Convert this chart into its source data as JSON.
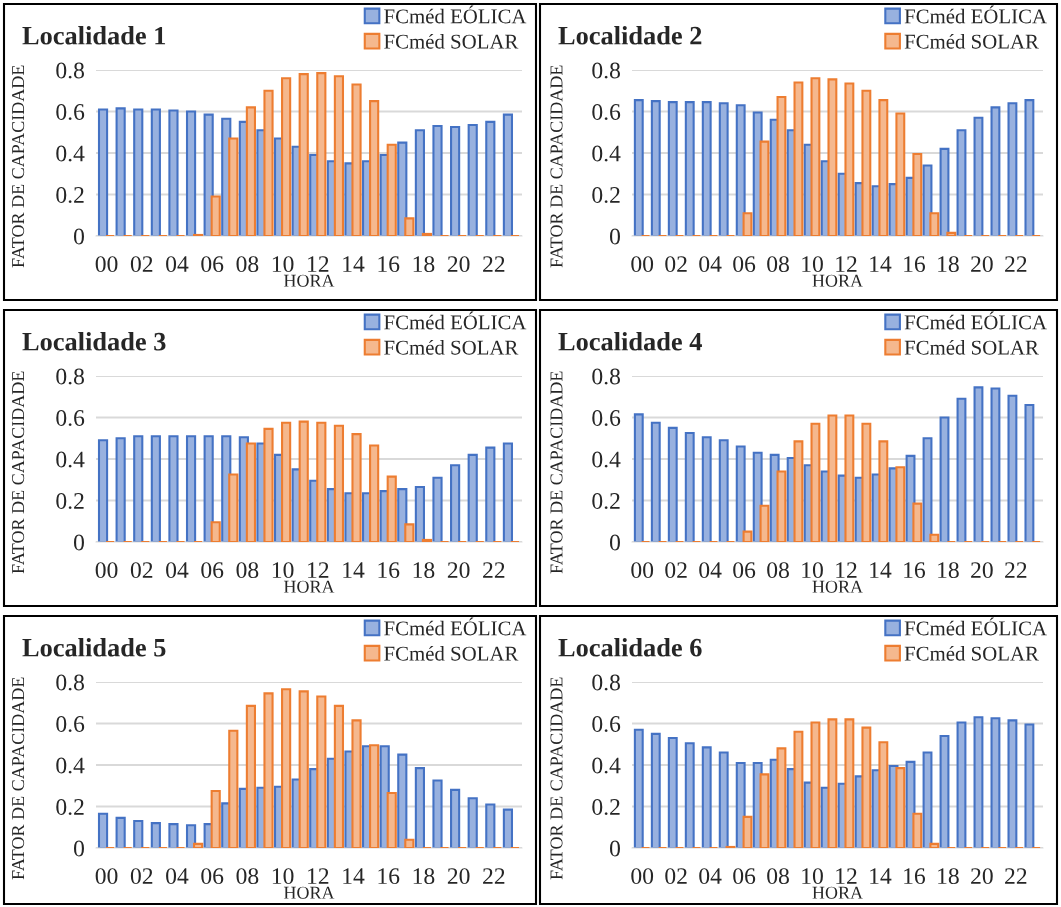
{
  "chart_data": [
    {
      "type": "bar",
      "title": "Localidade 1",
      "xlabel": "HORA",
      "ylabel": "FATOR DE CAPACIDADE",
      "categories": [
        "00",
        null,
        "02",
        null,
        "04",
        null,
        "06",
        null,
        "08",
        null,
        "10",
        null,
        "12",
        null,
        "14",
        null,
        "16",
        null,
        "18",
        null,
        "20",
        null,
        "22",
        null
      ],
      "ylim": [
        0,
        0.8
      ],
      "yticks": [
        0,
        0.2,
        0.4,
        0.6,
        0.8
      ],
      "grid": "y",
      "legend": "top right",
      "series": [
        {
          "name": "FCméd EÓLICA",
          "color": "#4472c4",
          "values": [
            0.61,
            0.615,
            0.61,
            0.61,
            0.605,
            0.6,
            0.585,
            0.565,
            0.55,
            0.51,
            0.47,
            0.43,
            0.39,
            0.36,
            0.35,
            0.36,
            0.39,
            0.45,
            0.51,
            0.53,
            0.525,
            0.535,
            0.55,
            0.585
          ]
        },
        {
          "name": "FCméd SOLAR",
          "color": "#ed7d31",
          "values": [
            0,
            0,
            0,
            0,
            0,
            0.005,
            0.19,
            0.47,
            0.62,
            0.7,
            0.76,
            0.78,
            0.785,
            0.77,
            0.73,
            0.65,
            0.44,
            0.085,
            0.01,
            0,
            0,
            0,
            0,
            0
          ]
        }
      ]
    },
    {
      "type": "bar",
      "title": "Localidade 2",
      "xlabel": "HORA",
      "ylabel": "FATOR DE CAPACIDADE",
      "categories": [
        "00",
        null,
        "02",
        null,
        "04",
        null,
        "06",
        null,
        "08",
        null,
        "10",
        null,
        "12",
        null,
        "14",
        null,
        "16",
        null,
        "18",
        null,
        "20",
        null,
        "22",
        null
      ],
      "ylim": [
        0,
        0.8
      ],
      "yticks": [
        0,
        0.2,
        0.4,
        0.6,
        0.8
      ],
      "grid": "y",
      "legend": "top right",
      "series": [
        {
          "name": "FCméd EÓLICA",
          "color": "#4472c4",
          "values": [
            0.655,
            0.65,
            0.645,
            0.645,
            0.645,
            0.64,
            0.63,
            0.595,
            0.56,
            0.51,
            0.44,
            0.36,
            0.3,
            0.255,
            0.24,
            0.25,
            0.28,
            0.34,
            0.42,
            0.51,
            0.57,
            0.62,
            0.64,
            0.655
          ]
        },
        {
          "name": "FCméd SOLAR",
          "color": "#ed7d31",
          "values": [
            0,
            0,
            0,
            0,
            0,
            0,
            0.11,
            0.455,
            0.67,
            0.74,
            0.76,
            0.755,
            0.735,
            0.7,
            0.655,
            0.59,
            0.395,
            0.11,
            0.015,
            0,
            0,
            0,
            0,
            0
          ]
        }
      ]
    },
    {
      "type": "bar",
      "title": "Localidade 3",
      "xlabel": "HORA",
      "ylabel": "FATOR DE CAPACIDADE",
      "categories": [
        "00",
        null,
        "02",
        null,
        "04",
        null,
        "06",
        null,
        "08",
        null,
        "10",
        null,
        "12",
        null,
        "14",
        null,
        "16",
        null,
        "18",
        null,
        "20",
        null,
        "22",
        null
      ],
      "ylim": [
        0,
        0.8
      ],
      "yticks": [
        0,
        0.2,
        0.4,
        0.6,
        0.8
      ],
      "grid": "y",
      "legend": "top right",
      "series": [
        {
          "name": "FCméd EÓLICA",
          "color": "#4472c4",
          "values": [
            0.49,
            0.5,
            0.51,
            0.51,
            0.51,
            0.51,
            0.51,
            0.51,
            0.505,
            0.475,
            0.42,
            0.35,
            0.295,
            0.255,
            0.235,
            0.235,
            0.245,
            0.255,
            0.265,
            0.31,
            0.37,
            0.42,
            0.455,
            0.475
          ]
        },
        {
          "name": "FCméd SOLAR",
          "color": "#ed7d31",
          "values": [
            0,
            0,
            0,
            0,
            0,
            0,
            0.095,
            0.325,
            0.475,
            0.545,
            0.575,
            0.58,
            0.575,
            0.56,
            0.52,
            0.465,
            0.315,
            0.085,
            0.01,
            0,
            0,
            0,
            0,
            0
          ]
        }
      ]
    },
    {
      "type": "bar",
      "title": "Localidade 4",
      "xlabel": "HORA",
      "ylabel": "FATOR DE CAPACIDADE",
      "categories": [
        "00",
        null,
        "02",
        null,
        "04",
        null,
        "06",
        null,
        "08",
        null,
        "10",
        null,
        "12",
        null,
        "14",
        null,
        "16",
        null,
        "18",
        null,
        "20",
        null,
        "22",
        null
      ],
      "ylim": [
        0,
        0.8
      ],
      "yticks": [
        0,
        0.2,
        0.4,
        0.6,
        0.8
      ],
      "grid": "y",
      "legend": "top right",
      "series": [
        {
          "name": "FCméd EÓLICA",
          "color": "#4472c4",
          "values": [
            0.615,
            0.575,
            0.55,
            0.525,
            0.505,
            0.49,
            0.46,
            0.43,
            0.42,
            0.405,
            0.37,
            0.34,
            0.32,
            0.31,
            0.325,
            0.355,
            0.415,
            0.5,
            0.6,
            0.69,
            0.745,
            0.74,
            0.705,
            0.66
          ]
        },
        {
          "name": "FCméd SOLAR",
          "color": "#ed7d31",
          "values": [
            0,
            0,
            0,
            0,
            0,
            0,
            0.05,
            0.175,
            0.34,
            0.485,
            0.57,
            0.61,
            0.61,
            0.57,
            0.485,
            0.36,
            0.185,
            0.035,
            0,
            0,
            0,
            0,
            0,
            0
          ]
        }
      ]
    },
    {
      "type": "bar",
      "title": "Localidade 5",
      "xlabel": "HORA",
      "ylabel": "FATOR DE CAPACIDADE",
      "categories": [
        "00",
        null,
        "02",
        null,
        "04",
        null,
        "06",
        null,
        "08",
        null,
        "10",
        null,
        "12",
        null,
        "14",
        null,
        "16",
        null,
        "18",
        null,
        "20",
        null,
        "22",
        null
      ],
      "ylim": [
        0,
        0.8
      ],
      "yticks": [
        0,
        0.2,
        0.4,
        0.6,
        0.8
      ],
      "grid": "y",
      "legend": "top right",
      "series": [
        {
          "name": "FCméd EÓLICA",
          "color": "#4472c4",
          "values": [
            0.165,
            0.145,
            0.13,
            0.12,
            0.115,
            0.11,
            0.115,
            0.215,
            0.285,
            0.29,
            0.295,
            0.33,
            0.38,
            0.43,
            0.465,
            0.49,
            0.49,
            0.45,
            0.385,
            0.325,
            0.28,
            0.24,
            0.21,
            0.185
          ]
        },
        {
          "name": "FCméd SOLAR",
          "color": "#ed7d31",
          "values": [
            0,
            0,
            0,
            0,
            0,
            0.02,
            0.275,
            0.565,
            0.685,
            0.745,
            0.765,
            0.755,
            0.73,
            0.685,
            0.615,
            0.495,
            0.265,
            0.04,
            0,
            0,
            0,
            0,
            0,
            0
          ]
        }
      ]
    },
    {
      "type": "bar",
      "title": "Localidade 6",
      "xlabel": "HORA",
      "ylabel": "FATOR DE CAPACIDADE",
      "categories": [
        "00",
        null,
        "02",
        null,
        "04",
        null,
        "06",
        null,
        "08",
        null,
        "10",
        null,
        "12",
        null,
        "14",
        null,
        "16",
        null,
        "18",
        null,
        "20",
        null,
        "22",
        null
      ],
      "ylim": [
        0,
        0.8
      ],
      "yticks": [
        0,
        0.2,
        0.4,
        0.6,
        0.8
      ],
      "grid": "y",
      "legend": "top right",
      "series": [
        {
          "name": "FCméd EÓLICA",
          "color": "#4472c4",
          "values": [
            0.57,
            0.55,
            0.53,
            0.505,
            0.485,
            0.46,
            0.41,
            0.41,
            0.425,
            0.38,
            0.315,
            0.29,
            0.31,
            0.345,
            0.375,
            0.395,
            0.415,
            0.46,
            0.54,
            0.605,
            0.63,
            0.625,
            0.615,
            0.595
          ]
        },
        {
          "name": "FCméd SOLAR",
          "color": "#ed7d31",
          "values": [
            0,
            0,
            0,
            0,
            0,
            0.005,
            0.15,
            0.355,
            0.48,
            0.56,
            0.605,
            0.62,
            0.62,
            0.58,
            0.51,
            0.385,
            0.165,
            0.02,
            0,
            0,
            0,
            0,
            0,
            0
          ]
        }
      ]
    }
  ]
}
